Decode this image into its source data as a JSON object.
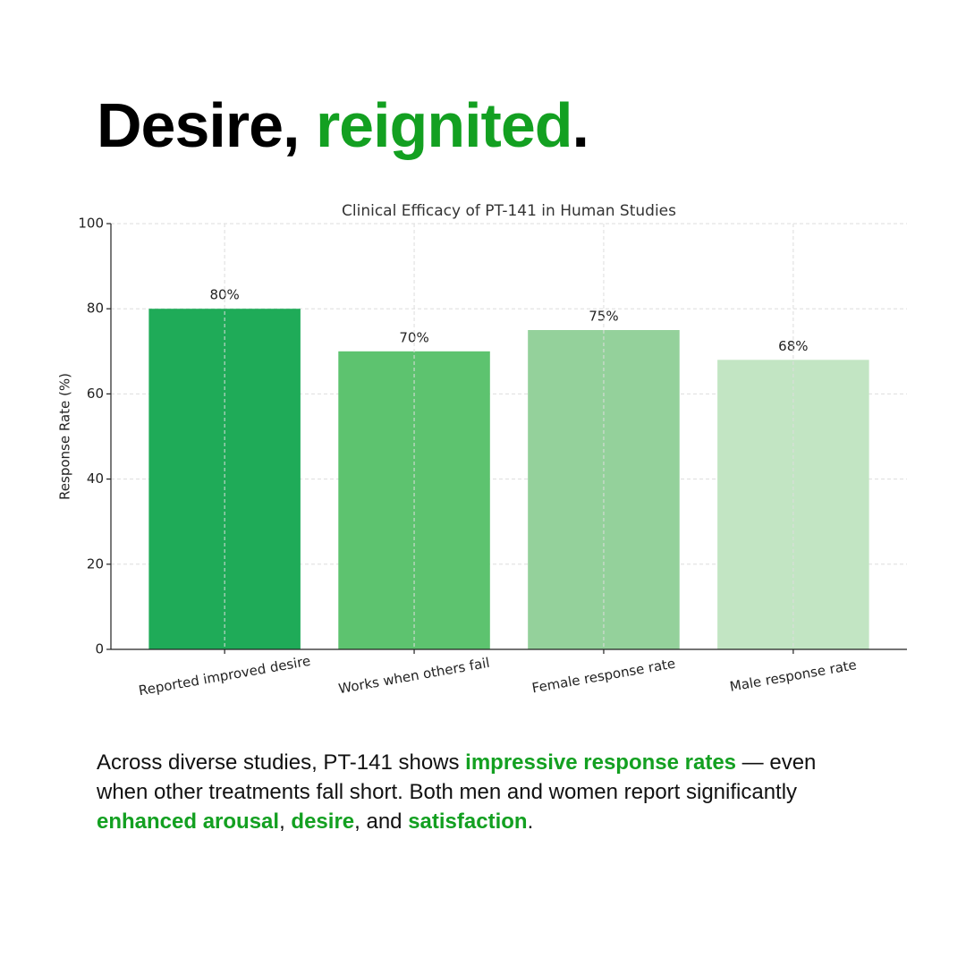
{
  "headline": [
    {
      "text": "Desire, ",
      "highlight": false
    },
    {
      "text": "reignited",
      "highlight": true
    },
    {
      "text": ".",
      "highlight": false
    }
  ],
  "chart_data": {
    "type": "bar",
    "title": "Clinical Efficacy of PT-141 in Human Studies",
    "y_label": "Response Rate (%)",
    "categories": [
      "Reported improved desire",
      "Works when others fail",
      "Female response rate",
      "Male response rate"
    ],
    "values": [
      80,
      70,
      75,
      68
    ],
    "value_labels": [
      "80%",
      "70%",
      "75%",
      "68%"
    ],
    "colors": [
      "#1fab58",
      "#5dc36f",
      "#94d19b",
      "#c2e5c3"
    ],
    "ylim": [
      0,
      100
    ],
    "yticks": [
      0,
      20,
      40,
      60,
      80,
      100
    ],
    "grid": true
  },
  "paragraph": [
    {
      "text": "Across diverse studies, PT-141 shows ",
      "highlight": false
    },
    {
      "text": "impressive response rates",
      "highlight": true
    },
    {
      "text": " — even when other treatments fall short. Both men and women report significantly ",
      "highlight": false
    },
    {
      "text": "enhanced arousal",
      "highlight": true
    },
    {
      "text": ", ",
      "highlight": false
    },
    {
      "text": "desire",
      "highlight": true
    },
    {
      "text": ", and ",
      "highlight": false
    },
    {
      "text": "satisfaction",
      "highlight": true
    },
    {
      "text": ".",
      "highlight": false
    }
  ]
}
